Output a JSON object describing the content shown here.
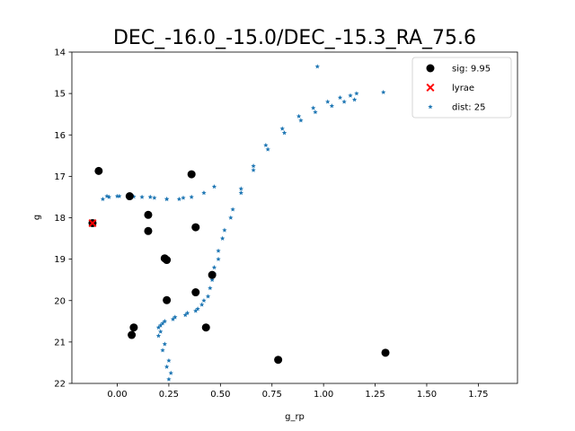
{
  "chart_data": {
    "type": "scatter",
    "title": "DEC_-16.0_-15.0/DEC_-15.3_RA_75.6",
    "xlabel": "g_rp",
    "ylabel": "g",
    "xlim": [
      -0.22,
      1.94
    ],
    "ylim": [
      22,
      14
    ],
    "y_inverted": true,
    "grid": false,
    "legend_position": "top-right",
    "x_ticks": [
      "0.00",
      "0.25",
      "0.50",
      "0.75",
      "1.00",
      "1.25",
      "1.50",
      "1.75"
    ],
    "x_tick_values": [
      0,
      0.25,
      0.5,
      0.75,
      1.0,
      1.25,
      1.5,
      1.75
    ],
    "y_ticks": [
      "14",
      "15",
      "16",
      "17",
      "18",
      "19",
      "20",
      "21",
      "22"
    ],
    "y_tick_values": [
      14,
      15,
      16,
      17,
      18,
      19,
      20,
      21,
      22
    ],
    "series": [
      {
        "name": "sig: 9.95",
        "marker": "circle",
        "color": "#000000",
        "x": [
          -0.09,
          0.06,
          0.36,
          -0.12,
          0.15,
          0.15,
          0.38,
          0.23,
          0.24,
          0.46,
          0.38,
          0.24,
          0.08,
          0.07,
          0.43,
          0.78,
          1.3
        ],
        "y": [
          16.87,
          17.48,
          16.95,
          18.13,
          17.93,
          18.32,
          18.23,
          18.98,
          19.02,
          19.38,
          19.8,
          19.99,
          20.65,
          20.83,
          20.65,
          21.43,
          21.26
        ]
      },
      {
        "name": "lyrae",
        "marker": "x",
        "color": "#ff0000",
        "x": [
          -0.12
        ],
        "y": [
          18.13
        ]
      },
      {
        "name": "dist: 25",
        "marker": "star",
        "color": "#1f77b4",
        "x": [
          0.25,
          0.24,
          0.22,
          0.2,
          0.2,
          0.22,
          0.27,
          0.33,
          0.38,
          0.41,
          0.44,
          0.46,
          0.47,
          0.49,
          0.52,
          0.56,
          0.6,
          0.66,
          0.72,
          0.8,
          0.88,
          0.95,
          1.02,
          1.08,
          1.13,
          1.16,
          0.97,
          0.26,
          0.25,
          0.23,
          0.21,
          0.21,
          0.23,
          0.28,
          0.34,
          0.39,
          0.42,
          0.45,
          0.47,
          0.49,
          0.51,
          0.55,
          0.6,
          0.66,
          0.73,
          0.81,
          0.89,
          0.96,
          1.04,
          1.1,
          1.15,
          1.29,
          0.47,
          0.42,
          0.36,
          0.3,
          0.24,
          0.18,
          0.12,
          0.06,
          0.0,
          -0.04,
          -0.07,
          -0.05,
          0.01,
          0.08,
          0.16,
          0.24,
          0.32
        ],
        "y": [
          21.9,
          21.6,
          21.2,
          20.85,
          20.65,
          20.55,
          20.45,
          20.35,
          20.25,
          20.1,
          19.9,
          19.5,
          19.2,
          18.8,
          18.3,
          17.8,
          17.3,
          16.75,
          16.25,
          15.85,
          15.55,
          15.35,
          15.2,
          15.1,
          15.05,
          15.0,
          14.35,
          21.75,
          21.45,
          21.05,
          20.75,
          20.6,
          20.5,
          20.4,
          20.3,
          20.2,
          20.0,
          19.7,
          19.35,
          19.0,
          18.5,
          18.0,
          17.4,
          16.85,
          16.35,
          15.95,
          15.65,
          15.45,
          15.3,
          15.2,
          15.15,
          14.97,
          17.25,
          17.4,
          17.5,
          17.55,
          17.55,
          17.52,
          17.5,
          17.48,
          17.48,
          17.5,
          17.55,
          17.48,
          17.48,
          17.49,
          17.5,
          17.55,
          17.52
        ]
      }
    ]
  }
}
